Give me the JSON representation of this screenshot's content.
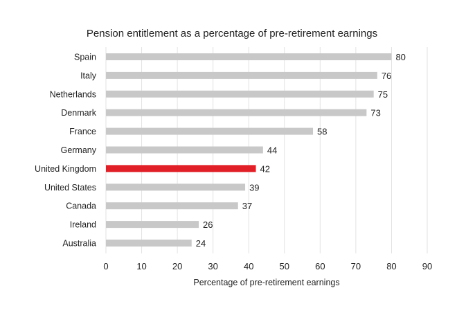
{
  "chart_data": {
    "type": "bar",
    "orientation": "horizontal",
    "title": "Pension entitlement as a percentage of pre-retirement earnings",
    "xlabel": "Percentage of pre-retirement earnings",
    "ylabel": "",
    "xlim": [
      0,
      90
    ],
    "xticks": [
      "0",
      "10",
      "20",
      "30",
      "40",
      "50",
      "60",
      "70",
      "80",
      "90"
    ],
    "grid": "vertical",
    "data_labels": true,
    "categories": [
      "Spain",
      "Italy",
      "Netherlands",
      "Denmark",
      "France",
      "Germany",
      "United Kingdom",
      "United States",
      "Canada",
      "Ireland",
      "Australia"
    ],
    "values": [
      80,
      76,
      75,
      73,
      58,
      44,
      42,
      39,
      37,
      26,
      24
    ],
    "highlight": "United Kingdom",
    "colors": {
      "bar": "#c8c8c8",
      "highlight": "#e01f26",
      "grid": "#e2e2e2",
      "text": "#222222"
    }
  }
}
